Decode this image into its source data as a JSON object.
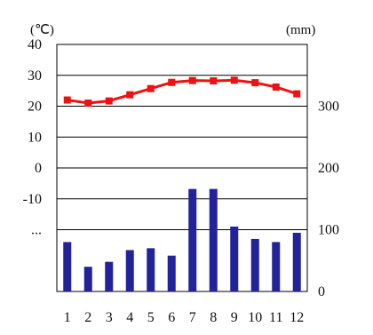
{
  "chart_data": {
    "type": "bar",
    "title": "",
    "categories": [
      "1",
      "2",
      "3",
      "4",
      "5",
      "6",
      "7",
      "8",
      "9",
      "10",
      "11",
      "12"
    ],
    "left_axis": {
      "unit_label": "(℃)",
      "ticks": [
        40,
        30,
        20,
        10,
        0,
        -10,
        -20
      ],
      "tick_labels": [
        "40",
        "30",
        "20",
        "10",
        "0",
        "-10",
        "..."
      ],
      "ylim": [
        -40,
        40
      ]
    },
    "right_axis": {
      "unit_label": "(mm)",
      "ticks": [
        0,
        100,
        200,
        300
      ],
      "tick_labels": [
        "0",
        "100",
        "200",
        "300"
      ],
      "ylim": [
        0,
        400
      ]
    },
    "series": [
      {
        "type": "line",
        "axis": "left",
        "color": "#ee1111",
        "values": [
          22,
          21,
          21.7,
          23.7,
          25.7,
          27.7,
          28.3,
          28.2,
          28.4,
          27.6,
          26.2,
          24
        ]
      },
      {
        "type": "bar",
        "axis": "right",
        "color": "#22229a",
        "values": [
          80,
          40,
          48,
          67,
          70,
          58,
          166,
          166,
          105,
          85,
          80,
          95
        ]
      }
    ],
    "grid": true,
    "legend": "none"
  }
}
